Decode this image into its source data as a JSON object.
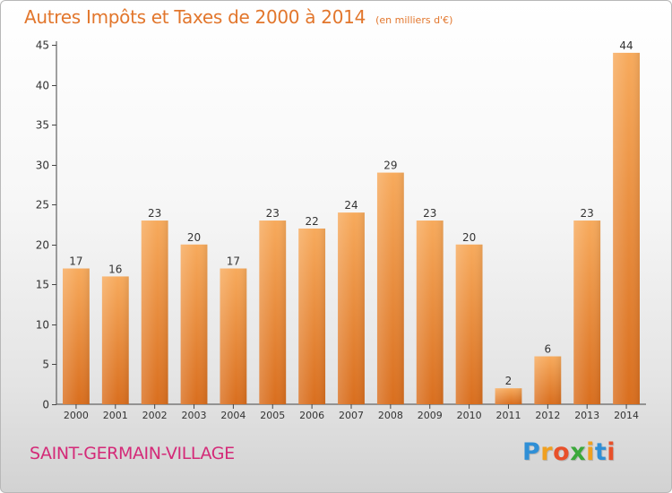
{
  "chart_data": {
    "type": "bar",
    "title": "Autres Impôts et Taxes de 2000 à 2014",
    "subtitle": "(en milliers d'€)",
    "categories": [
      "2000",
      "2001",
      "2002",
      "2003",
      "2004",
      "2005",
      "2006",
      "2007",
      "2008",
      "2009",
      "2010",
      "2011",
      "2012",
      "2013",
      "2014"
    ],
    "values": [
      17,
      16,
      23,
      20,
      17,
      23,
      22,
      24,
      29,
      23,
      20,
      2,
      6,
      23,
      44
    ],
    "xlabel": "",
    "ylabel": "",
    "ylim": [
      0,
      45
    ],
    "yticks": [
      0,
      5,
      10,
      15,
      20,
      25,
      30,
      35,
      40,
      45
    ],
    "grid": false,
    "bar_color": "#f0923e",
    "bar_color_light": "#f7aa5c",
    "bar_color_dark": "#d96e1e"
  },
  "footer": {
    "location": "SAINT-GERMAIN-VILLAGE",
    "brand_letters": [
      {
        "char": "P",
        "color": "#2f8fd6"
      },
      {
        "char": "r",
        "color": "#f0a020"
      },
      {
        "char": "o",
        "color": "#e8502a"
      },
      {
        "char": "x",
        "color": "#3aa83a"
      },
      {
        "char": "i",
        "color": "#f0a020"
      },
      {
        "char": "t",
        "color": "#2f8fd6"
      },
      {
        "char": "i",
        "color": "#e8502a"
      }
    ]
  },
  "colors": {
    "title": "#e2762c",
    "location": "#d42a78"
  }
}
